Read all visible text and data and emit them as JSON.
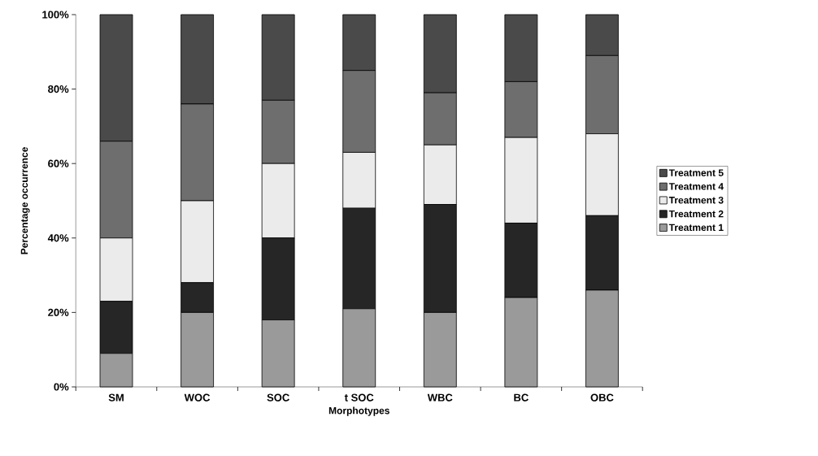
{
  "chart_data": {
    "type": "bar",
    "stacked": true,
    "xlabel": "Morphotypes",
    "ylabel": "Percentage occurrence",
    "categories": [
      "SM",
      "WOC",
      "SOC",
      "t SOC",
      "WBC",
      "BC",
      "OBC"
    ],
    "series": [
      {
        "name": "Treatment 1",
        "color": "#9a9a9a",
        "values": [
          9,
          20,
          18,
          21,
          20,
          24,
          26
        ]
      },
      {
        "name": "Treatment 2",
        "color": "#262626",
        "values": [
          14,
          8,
          22,
          27,
          29,
          20,
          20
        ]
      },
      {
        "name": "Treatment 3",
        "color": "#ebebeb",
        "values": [
          17,
          22,
          20,
          15,
          16,
          23,
          22
        ]
      },
      {
        "name": "Treatment 4",
        "color": "#6e6e6e",
        "values": [
          26,
          26,
          17,
          22,
          14,
          15,
          21
        ]
      },
      {
        "name": "Treatment 5",
        "color": "#4a4a4a",
        "values": [
          34,
          24,
          23,
          15,
          21,
          18,
          11
        ]
      }
    ],
    "ylim": [
      0,
      100
    ],
    "yticks": [
      {
        "value": 0,
        "label": "0%"
      },
      {
        "value": 20,
        "label": "20%"
      },
      {
        "value": 40,
        "label": "40%"
      },
      {
        "value": 60,
        "label": "60%"
      },
      {
        "value": 80,
        "label": "80%"
      },
      {
        "value": 100,
        "label": "100%"
      }
    ],
    "legend": "right",
    "grid": false
  }
}
